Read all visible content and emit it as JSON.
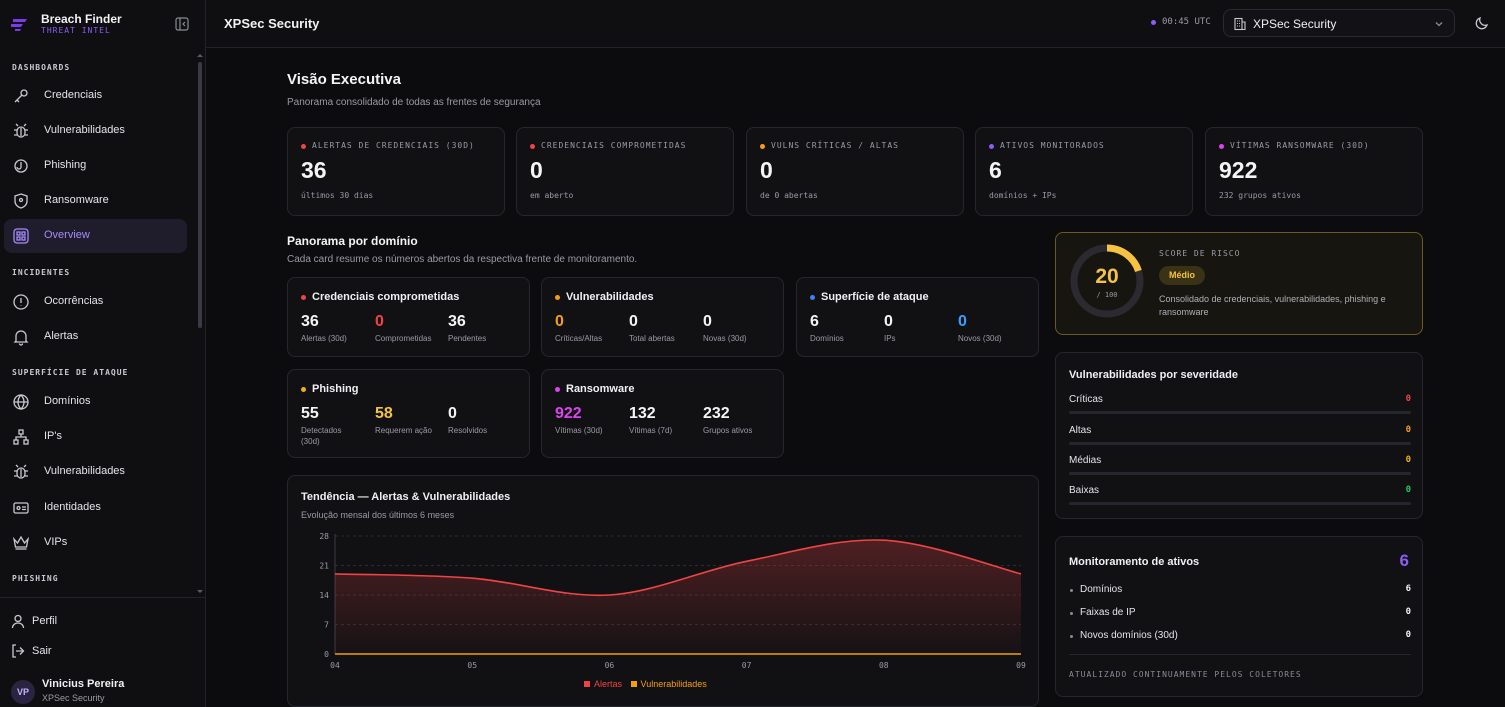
{
  "brand": {
    "title": "Breach Finder",
    "subtitle": "THREAT INTEL"
  },
  "sidebar": {
    "sections": [
      "DASHBOARDS",
      "INCIDENTES",
      "SUPERFÍCIE DE ATAQUE",
      "PHISHING"
    ],
    "items": [
      {
        "label": "Credenciais",
        "icon": "key-icon"
      },
      {
        "label": "Vulnerabilidades",
        "icon": "bug-icon"
      },
      {
        "label": "Phishing",
        "icon": "fishhook-icon"
      },
      {
        "label": "Ransomware",
        "icon": "shield-icon"
      },
      {
        "label": "Overview",
        "icon": "grid-icon",
        "active": true
      },
      {
        "label": "Ocorrências",
        "icon": "alert-circle-icon"
      },
      {
        "label": "Alertas",
        "icon": "bell-icon"
      },
      {
        "label": "Domínios",
        "icon": "globe-icon"
      },
      {
        "label": "IP's",
        "icon": "network-icon"
      },
      {
        "label": "Vulnerabilidades",
        "icon": "bug-icon"
      },
      {
        "label": "Identidades",
        "icon": "id-card-icon"
      },
      {
        "label": "VIPs",
        "icon": "crown-icon"
      }
    ],
    "footer": {
      "profile": "Perfil",
      "logout": "Sair"
    },
    "user": {
      "initials": "VP",
      "name": "Vinicius Pereira",
      "org": "XPSec Security"
    }
  },
  "topbar": {
    "title": "XPSec Security",
    "clock": "00:45 UTC",
    "org_selected": "XPSec Security"
  },
  "page": {
    "title": "Visão Executiva",
    "subtitle": "Panorama consolidado de todas as frentes de segurança"
  },
  "kpis": [
    {
      "label": "ALERTAS DE CREDENCIAIS (30D)",
      "value": "36",
      "sub": "últimos 30 dias",
      "color": "#ef4444"
    },
    {
      "label": "CREDENCIAIS COMPROMETIDAS",
      "value": "0",
      "sub": "em aberto",
      "color": "#ef4444"
    },
    {
      "label": "VULNS CRÍTICAS / ALTAS",
      "value": "0",
      "sub": "de 0 abertas",
      "color": "#f59e0b"
    },
    {
      "label": "ATIVOS MONITORADOS",
      "value": "6",
      "sub": "domínios + IPs",
      "color": "#8b5cf6"
    },
    {
      "label": "VÍTIMAS RANSOMWARE (30D)",
      "value": "922",
      "sub": "232 grupos ativos",
      "color": "#d946ef"
    }
  ],
  "domain_overview": {
    "title": "Panorama por domínio",
    "subtitle": "Cada card resume os números abertos da respectiva frente de monitoramento.",
    "cards": [
      {
        "title": "Credenciais comprometidas",
        "color": "#ef4444",
        "stats": [
          {
            "value": "36",
            "label": "Alertas (30d)",
            "color": "#f4f4f7"
          },
          {
            "value": "0",
            "label": "Comprometidas",
            "color": "#ef4444"
          },
          {
            "value": "36",
            "label": "Pendentes",
            "color": "#f4f4f7"
          }
        ]
      },
      {
        "title": "Vulnerabilidades",
        "color": "#f59e0b",
        "stats": [
          {
            "value": "0",
            "label": "Críticas/Altas",
            "color": "#f59e0b"
          },
          {
            "value": "0",
            "label": "Total abertas",
            "color": "#f4f4f7"
          },
          {
            "value": "0",
            "label": "Novas (30d)",
            "color": "#f4f4f7"
          }
        ]
      },
      {
        "title": "Superfície de ataque",
        "color": "#3b82f6",
        "stats": [
          {
            "value": "6",
            "label": "Domínios",
            "color": "#f4f4f7"
          },
          {
            "value": "0",
            "label": "IPs",
            "color": "#f4f4f7"
          },
          {
            "value": "0",
            "label": "Novos (30d)",
            "color": "#3b9eff"
          }
        ]
      },
      {
        "title": "Phishing",
        "color": "#eab308",
        "stats": [
          {
            "value": "55",
            "label": "Detectados (30d)",
            "color": "#f4f4f7"
          },
          {
            "value": "58",
            "label": "Requerem ação",
            "color": "#f5c242"
          },
          {
            "value": "0",
            "label": "Resolvidos",
            "color": "#f4f4f7"
          }
        ]
      },
      {
        "title": "Ransomware",
        "color": "#d946ef",
        "stats": [
          {
            "value": "922",
            "label": "Vítimas (30d)",
            "color": "#d946ef"
          },
          {
            "value": "132",
            "label": "Vítimas (7d)",
            "color": "#f4f4f7"
          },
          {
            "value": "232",
            "label": "Grupos ativos",
            "color": "#f4f4f7"
          }
        ]
      }
    ]
  },
  "risk": {
    "label": "SCORE DE RISCO",
    "score": 20,
    "score_text": "20",
    "max_text": "/ 100",
    "level": "Médio",
    "description": "Consolidado de credenciais, vulnerabilidades, phishing e ransomware",
    "color": "#f5c242"
  },
  "severity": {
    "title": "Vulnerabilidades por severidade",
    "rows": [
      {
        "label": "Críticas",
        "value": "0",
        "color": "#ef4444"
      },
      {
        "label": "Altas",
        "value": "0",
        "color": "#f59e0b"
      },
      {
        "label": "Médias",
        "value": "0",
        "color": "#eab308"
      },
      {
        "label": "Baixas",
        "value": "0",
        "color": "#22c55e"
      }
    ]
  },
  "monitoring": {
    "title": "Monitoramento de ativos",
    "total": "6",
    "rows": [
      {
        "label": "Domínios",
        "value": "6"
      },
      {
        "label": "Faixas de IP",
        "value": "0"
      },
      {
        "label": "Novos domínios (30d)",
        "value": "0"
      }
    ],
    "footer": "ATUALIZADO CONTINUAMENTE PELOS COLETORES"
  },
  "chart_data": {
    "type": "area",
    "title": "Tendência — Alertas & Vulnerabilidades",
    "subtitle": "Evolução mensal dos últimos 6 meses",
    "x": [
      "04",
      "05",
      "06",
      "07",
      "08",
      "09"
    ],
    "series": [
      {
        "name": "Alertas",
        "values": [
          19,
          18,
          14,
          22,
          27,
          19
        ],
        "color": "#ef4444"
      },
      {
        "name": "Vulnerabilidades",
        "values": [
          0,
          0,
          0,
          0,
          0,
          0
        ],
        "color": "#f59e0b"
      }
    ],
    "yticks": [
      "0",
      "7",
      "14",
      "21",
      "28"
    ],
    "ylim": [
      0,
      28
    ],
    "grid": true,
    "legend": "bottom"
  }
}
